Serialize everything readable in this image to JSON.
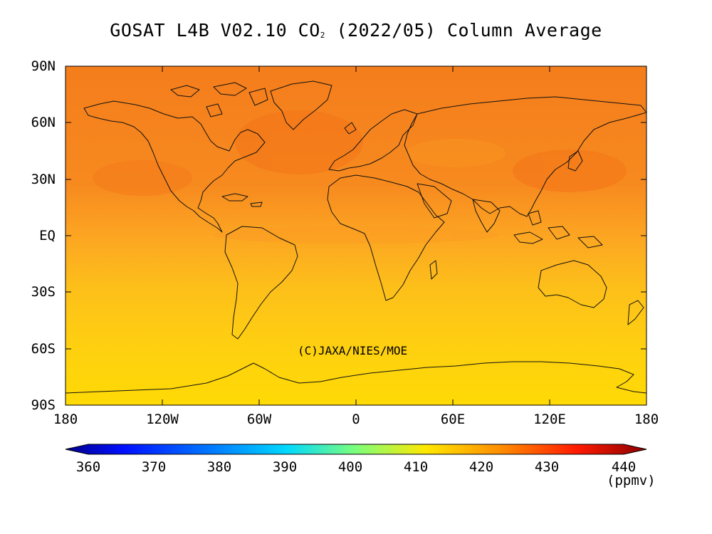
{
  "title": {
    "prefix": "GOSAT L4B V02.10 CO",
    "subscript": "2",
    "suffix": " (2022/05) Column Average"
  },
  "axes": {
    "y_ticks": [
      "90N",
      "60N",
      "30N",
      "EQ",
      "30S",
      "60S",
      "90S"
    ],
    "x_ticks": [
      "180",
      "120W",
      "60W",
      "0",
      "60E",
      "120E",
      "180"
    ]
  },
  "copyright": "(C)JAXA/NIES/MOE",
  "colorbar": {
    "ticks": [
      "360",
      "370",
      "380",
      "390",
      "400",
      "410",
      "420",
      "430",
      "440"
    ],
    "unit": "(ppmv)",
    "range": [
      360,
      440
    ]
  },
  "chart_data": {
    "type": "heatmap",
    "title": "GOSAT L4B V02.10 CO2 (2022/05) Column Average",
    "x_axis": "longitude",
    "y_axis": "latitude",
    "xlim": [
      -180,
      180
    ],
    "ylim": [
      -90,
      90
    ],
    "color_scale": {
      "min": 360,
      "max": 440,
      "unit": "ppmv"
    },
    "zonal_mean_approx": [
      {
        "lat": 90,
        "value": 419.5
      },
      {
        "lat": 60,
        "value": 419.5
      },
      {
        "lat": 30,
        "value": 418.5
      },
      {
        "lat": 15,
        "value": 417.5
      },
      {
        "lat": 0,
        "value": 416.0
      },
      {
        "lat": -15,
        "value": 415.0
      },
      {
        "lat": -30,
        "value": 414.0
      },
      {
        "lat": -45,
        "value": 413.5
      },
      {
        "lat": -60,
        "value": 413.0
      },
      {
        "lat": -90,
        "value": 412.5
      }
    ]
  }
}
